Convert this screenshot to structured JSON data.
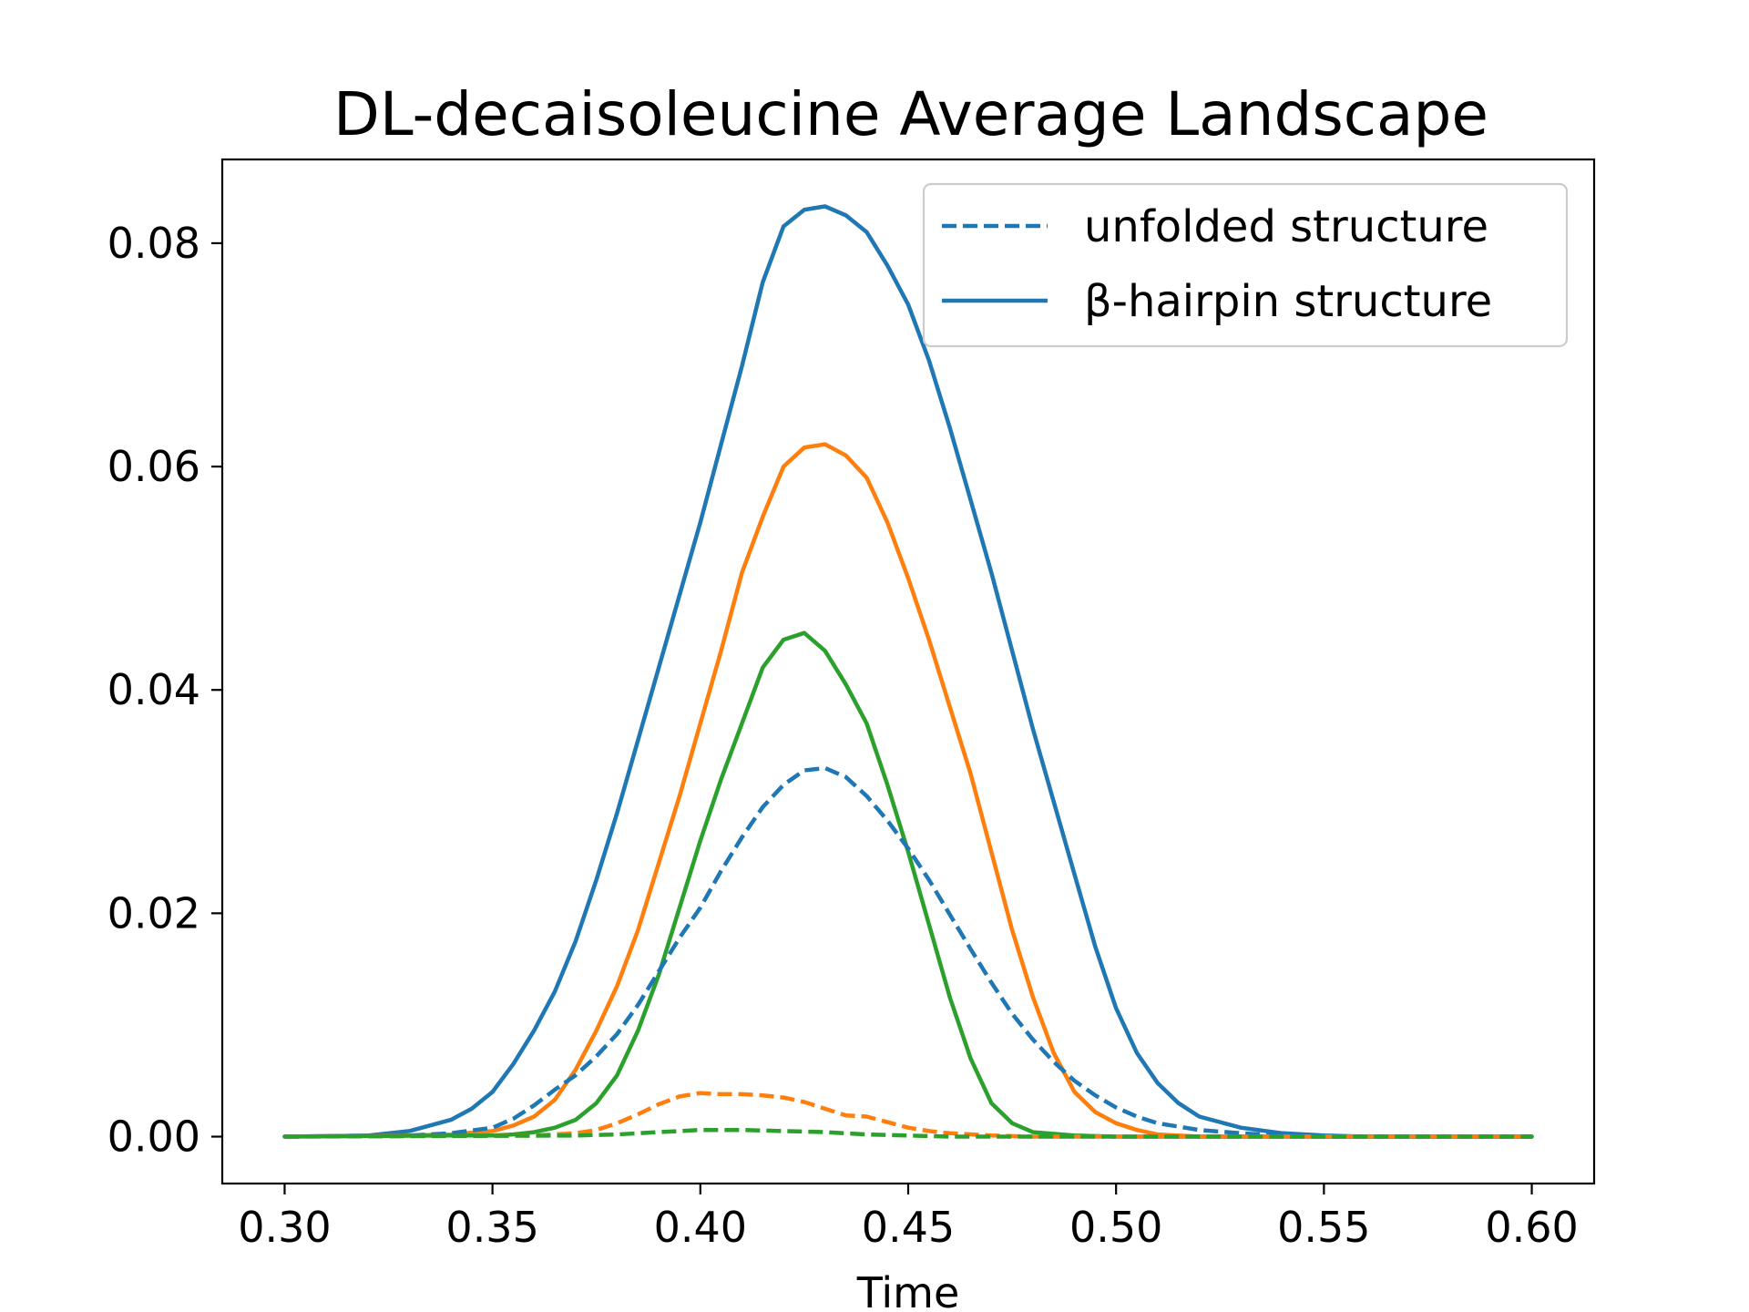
{
  "chart_data": {
    "type": "line",
    "title": "DL-decaisoleucine Average Landscape",
    "xlabel": "Time",
    "ylabel": "",
    "xlim": [
      0.285,
      0.615
    ],
    "ylim": [
      -0.0042,
      0.0875
    ],
    "xticks": [
      0.3,
      0.35,
      0.4,
      0.45,
      0.5,
      0.55,
      0.6
    ],
    "xtick_labels": [
      "0.30",
      "0.35",
      "0.40",
      "0.45",
      "0.50",
      "0.55",
      "0.60"
    ],
    "yticks": [
      0.0,
      0.02,
      0.04,
      0.06,
      0.08
    ],
    "ytick_labels": [
      "0.00",
      "0.02",
      "0.04",
      "0.06",
      "0.08"
    ],
    "grid": false,
    "legend": {
      "placement": "top-right",
      "entries": [
        {
          "label": "unfolded structure",
          "style": "dashed",
          "color": "#1f77b4"
        },
        {
          "label": "β-hairpin structure",
          "style": "solid",
          "color": "#1f77b4"
        }
      ]
    },
    "series": [
      {
        "color": "#1f77b4",
        "style": "solid",
        "points": [
          [
            0.3,
            0
          ],
          [
            0.32,
            0.0001
          ],
          [
            0.33,
            0.0005
          ],
          [
            0.34,
            0.0015
          ],
          [
            0.345,
            0.0025
          ],
          [
            0.35,
            0.004
          ],
          [
            0.355,
            0.0065
          ],
          [
            0.36,
            0.0095
          ],
          [
            0.365,
            0.013
          ],
          [
            0.37,
            0.0175
          ],
          [
            0.375,
            0.023
          ],
          [
            0.38,
            0.029
          ],
          [
            0.385,
            0.0355
          ],
          [
            0.39,
            0.042
          ],
          [
            0.395,
            0.0485
          ],
          [
            0.4,
            0.055
          ],
          [
            0.405,
            0.062
          ],
          [
            0.41,
            0.069
          ],
          [
            0.415,
            0.0765
          ],
          [
            0.42,
            0.0815
          ],
          [
            0.425,
            0.083
          ],
          [
            0.43,
            0.0833
          ],
          [
            0.435,
            0.0825
          ],
          [
            0.44,
            0.081
          ],
          [
            0.445,
            0.078
          ],
          [
            0.45,
            0.0745
          ],
          [
            0.455,
            0.0695
          ],
          [
            0.46,
            0.0635
          ],
          [
            0.465,
            0.057
          ],
          [
            0.47,
            0.0505
          ],
          [
            0.475,
            0.0435
          ],
          [
            0.48,
            0.0365
          ],
          [
            0.485,
            0.03
          ],
          [
            0.49,
            0.0235
          ],
          [
            0.495,
            0.017
          ],
          [
            0.5,
            0.0115
          ],
          [
            0.505,
            0.0075
          ],
          [
            0.51,
            0.0048
          ],
          [
            0.515,
            0.003
          ],
          [
            0.52,
            0.0018
          ],
          [
            0.53,
            0.0008
          ],
          [
            0.54,
            0.0003
          ],
          [
            0.55,
            0.0001
          ],
          [
            0.56,
            0
          ],
          [
            0.6,
            0
          ]
        ]
      },
      {
        "color": "#ff7f0e",
        "style": "solid",
        "points": [
          [
            0.3,
            0
          ],
          [
            0.33,
            0.0001
          ],
          [
            0.34,
            0.0002
          ],
          [
            0.35,
            0.0005
          ],
          [
            0.355,
            0.001
          ],
          [
            0.36,
            0.0018
          ],
          [
            0.365,
            0.0033
          ],
          [
            0.37,
            0.006
          ],
          [
            0.375,
            0.0095
          ],
          [
            0.38,
            0.0135
          ],
          [
            0.385,
            0.0185
          ],
          [
            0.39,
            0.0245
          ],
          [
            0.395,
            0.0305
          ],
          [
            0.4,
            0.037
          ],
          [
            0.405,
            0.0435
          ],
          [
            0.41,
            0.0505
          ],
          [
            0.415,
            0.0555
          ],
          [
            0.42,
            0.06
          ],
          [
            0.425,
            0.0617
          ],
          [
            0.43,
            0.062
          ],
          [
            0.435,
            0.061
          ],
          [
            0.44,
            0.059
          ],
          [
            0.445,
            0.055
          ],
          [
            0.45,
            0.05
          ],
          [
            0.455,
            0.0445
          ],
          [
            0.46,
            0.0385
          ],
          [
            0.465,
            0.0325
          ],
          [
            0.47,
            0.0255
          ],
          [
            0.475,
            0.0185
          ],
          [
            0.48,
            0.0125
          ],
          [
            0.485,
            0.0075
          ],
          [
            0.49,
            0.004
          ],
          [
            0.495,
            0.0022
          ],
          [
            0.5,
            0.0012
          ],
          [
            0.505,
            0.0006
          ],
          [
            0.51,
            0.0002
          ],
          [
            0.52,
            0
          ],
          [
            0.6,
            0
          ]
        ]
      },
      {
        "color": "#2ca02c",
        "style": "solid",
        "points": [
          [
            0.3,
            0
          ],
          [
            0.34,
            0.0001
          ],
          [
            0.35,
            0.0001
          ],
          [
            0.355,
            0.0002
          ],
          [
            0.36,
            0.0004
          ],
          [
            0.365,
            0.0008
          ],
          [
            0.37,
            0.0015
          ],
          [
            0.375,
            0.003
          ],
          [
            0.38,
            0.0055
          ],
          [
            0.385,
            0.0095
          ],
          [
            0.39,
            0.0145
          ],
          [
            0.395,
            0.0205
          ],
          [
            0.4,
            0.0265
          ],
          [
            0.405,
            0.032
          ],
          [
            0.41,
            0.037
          ],
          [
            0.415,
            0.042
          ],
          [
            0.42,
            0.0445
          ],
          [
            0.425,
            0.0451
          ],
          [
            0.43,
            0.0435
          ],
          [
            0.435,
            0.0405
          ],
          [
            0.44,
            0.037
          ],
          [
            0.445,
            0.0315
          ],
          [
            0.45,
            0.0255
          ],
          [
            0.455,
            0.019
          ],
          [
            0.46,
            0.0125
          ],
          [
            0.465,
            0.007
          ],
          [
            0.47,
            0.003
          ],
          [
            0.475,
            0.0012
          ],
          [
            0.48,
            0.0004
          ],
          [
            0.49,
            0.0001
          ],
          [
            0.5,
            0
          ],
          [
            0.6,
            0
          ]
        ]
      },
      {
        "color": "#1f77b4",
        "style": "dashed",
        "points": [
          [
            0.3,
            0
          ],
          [
            0.33,
            0.0001
          ],
          [
            0.34,
            0.0003
          ],
          [
            0.35,
            0.0008
          ],
          [
            0.355,
            0.0016
          ],
          [
            0.36,
            0.0028
          ],
          [
            0.365,
            0.0042
          ],
          [
            0.37,
            0.0055
          ],
          [
            0.375,
            0.0072
          ],
          [
            0.38,
            0.0092
          ],
          [
            0.385,
            0.0118
          ],
          [
            0.39,
            0.0148
          ],
          [
            0.395,
            0.0178
          ],
          [
            0.4,
            0.0205
          ],
          [
            0.405,
            0.0238
          ],
          [
            0.41,
            0.0268
          ],
          [
            0.415,
            0.0295
          ],
          [
            0.42,
            0.0315
          ],
          [
            0.425,
            0.0328
          ],
          [
            0.43,
            0.033
          ],
          [
            0.435,
            0.0322
          ],
          [
            0.44,
            0.0305
          ],
          [
            0.445,
            0.0283
          ],
          [
            0.45,
            0.0258
          ],
          [
            0.455,
            0.023
          ],
          [
            0.46,
            0.0199
          ],
          [
            0.465,
            0.0168
          ],
          [
            0.47,
            0.0138
          ],
          [
            0.475,
            0.011
          ],
          [
            0.48,
            0.0087
          ],
          [
            0.485,
            0.0067
          ],
          [
            0.49,
            0.005
          ],
          [
            0.495,
            0.0037
          ],
          [
            0.5,
            0.0026
          ],
          [
            0.505,
            0.0018
          ],
          [
            0.51,
            0.0012
          ],
          [
            0.52,
            0.0006
          ],
          [
            0.53,
            0.0003
          ],
          [
            0.54,
            0.0001
          ],
          [
            0.55,
            0
          ],
          [
            0.6,
            0
          ]
        ]
      },
      {
        "color": "#ff7f0e",
        "style": "dashed",
        "points": [
          [
            0.3,
            0
          ],
          [
            0.36,
            0.0001
          ],
          [
            0.37,
            0.0003
          ],
          [
            0.375,
            0.0006
          ],
          [
            0.38,
            0.0012
          ],
          [
            0.385,
            0.002
          ],
          [
            0.39,
            0.0029
          ],
          [
            0.395,
            0.0036
          ],
          [
            0.4,
            0.0039
          ],
          [
            0.405,
            0.0038
          ],
          [
            0.41,
            0.0038
          ],
          [
            0.415,
            0.0037
          ],
          [
            0.42,
            0.0035
          ],
          [
            0.425,
            0.0031
          ],
          [
            0.43,
            0.0025
          ],
          [
            0.435,
            0.0019
          ],
          [
            0.44,
            0.0018
          ],
          [
            0.445,
            0.0013
          ],
          [
            0.45,
            0.0008
          ],
          [
            0.455,
            0.0005
          ],
          [
            0.46,
            0.0003
          ],
          [
            0.47,
            0.0001
          ],
          [
            0.48,
            0
          ],
          [
            0.6,
            0
          ]
        ]
      },
      {
        "color": "#2ca02c",
        "style": "dashed",
        "points": [
          [
            0.3,
            0
          ],
          [
            0.37,
            0.0001
          ],
          [
            0.38,
            0.0002
          ],
          [
            0.39,
            0.0004
          ],
          [
            0.4,
            0.0006
          ],
          [
            0.41,
            0.0006
          ],
          [
            0.42,
            0.0005
          ],
          [
            0.43,
            0.0004
          ],
          [
            0.44,
            0.0002
          ],
          [
            0.45,
            0.0001
          ],
          [
            0.46,
            0
          ],
          [
            0.6,
            0
          ]
        ]
      }
    ]
  }
}
